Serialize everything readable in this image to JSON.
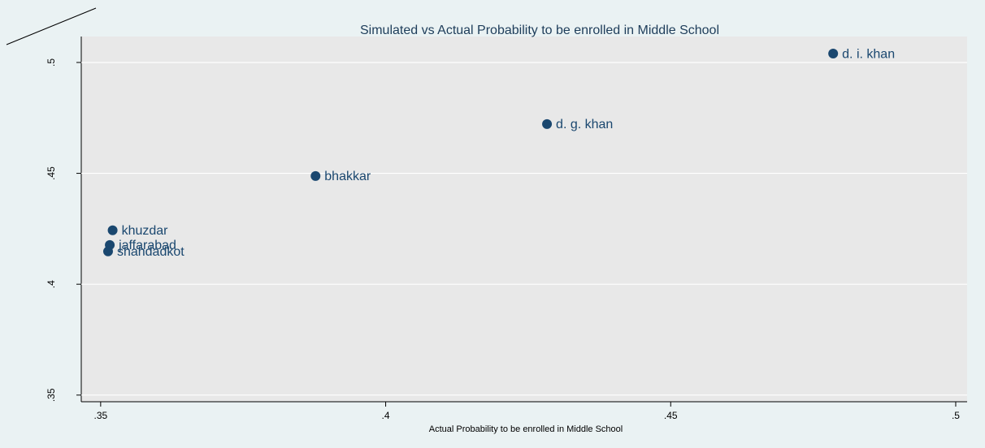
{
  "chart_data": {
    "type": "scatter",
    "title": "Simulated vs Actual Probability to be enrolled in Middle School",
    "x_label": "Actual Probability to be enrolled in Middle School",
    "labels": [
      "d. i. khan",
      "d. g. khan",
      "bhakkar",
      "khuzdar",
      "jaffarabad",
      "shahdadkot"
    ],
    "x": [
      0.4785,
      0.4283,
      0.3877,
      0.3521,
      0.3516,
      0.3513
    ],
    "values": [
      0.504,
      0.4722,
      0.4488,
      0.4243,
      0.4177,
      0.4148
    ],
    "color": "#1a476f",
    "xlim": [
      0.3466,
      0.502
    ],
    "ylim": [
      0.347,
      0.5117
    ],
    "xticks": [
      {
        "value": 0.35,
        "label": ".35"
      },
      {
        "value": 0.4,
        "label": ".4"
      },
      {
        "value": 0.45,
        "label": ".45"
      },
      {
        "value": 0.5,
        "label": ".5"
      }
    ],
    "yticks": [
      {
        "value": 0.35,
        "label": ".35"
      },
      {
        "value": 0.4,
        "label": ".4"
      },
      {
        "value": 0.45,
        "label": ".45"
      },
      {
        "value": 0.5,
        "label": ".5"
      }
    ],
    "grid": true
  }
}
